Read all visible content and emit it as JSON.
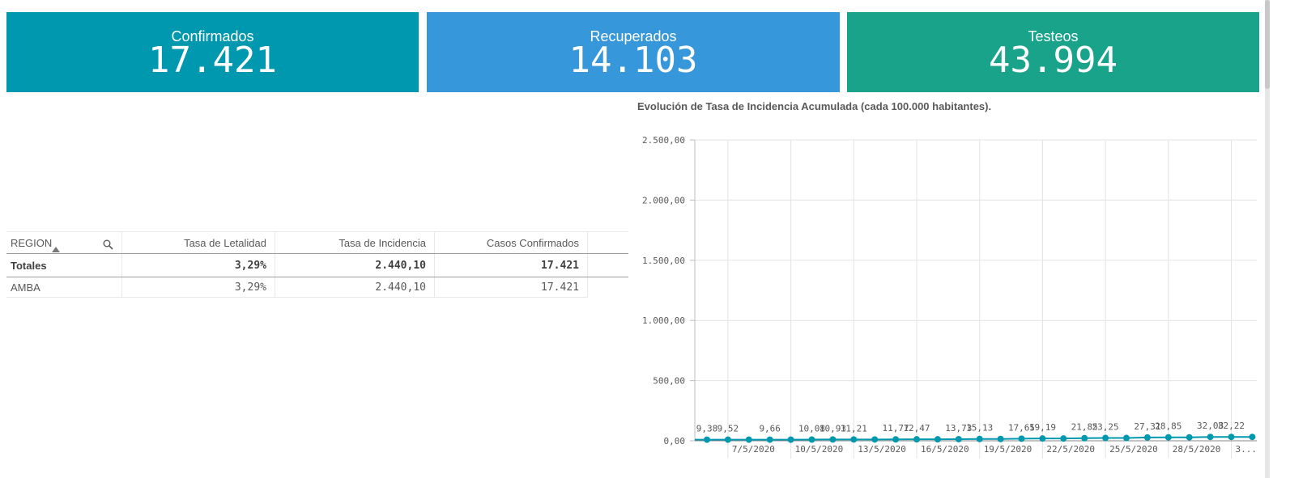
{
  "kpis": [
    {
      "label": "Confirmados",
      "value": "17.421",
      "color": "#0098ae"
    },
    {
      "label": "Recuperados",
      "value": "14.103",
      "color": "#3797db"
    },
    {
      "label": "Testeos",
      "value": "43.994",
      "color": "#18a38a"
    }
  ],
  "table": {
    "headers": [
      "REGION",
      "Tasa de Letalidad",
      "Tasa de Incidencia",
      "Casos Confirmados"
    ],
    "totals": [
      "Totales",
      "3,29%",
      "2.440,10",
      "17.421"
    ],
    "rows": [
      [
        "AMBA",
        "3,29%",
        "2.440,10",
        "17.421"
      ]
    ],
    "sort_icon": "sort-ascending-icon",
    "search_icon": "search-icon"
  },
  "chart_title": "Evolución de Tasa de Incidencia Acumulada (cada 100.000 habitantes).",
  "chart_data": {
    "type": "line",
    "title": "Evolución de Tasa de Incidencia Acumulada (cada 100.000 habitantes).",
    "ylim": [
      0,
      2500
    ],
    "yticks": [
      "0,00",
      "500,00",
      "1.000,00",
      "1.500,00",
      "2.000,00",
      "2.500,00"
    ],
    "ytick_values": [
      0,
      500,
      1000,
      1500,
      2000,
      2500
    ],
    "xtick_labels": [
      "7/5/2020",
      "10/5/2020",
      "13/5/2020",
      "16/5/2020",
      "19/5/2020",
      "22/5/2020",
      "25/5/2020",
      "28/5/2020",
      "3..."
    ],
    "xtick_index": [
      1,
      4,
      7,
      10,
      13,
      16,
      19,
      22,
      25
    ],
    "values": [
      9.38,
      9.52,
      9.52,
      9.66,
      9.66,
      10.08,
      10.93,
      11.21,
      11.21,
      11.77,
      12.47,
      12.47,
      13.73,
      15.13,
      15.13,
      17.65,
      19.19,
      19.19,
      21.85,
      23.25,
      23.25,
      27.31,
      28.85,
      28.85,
      32.08,
      32.22,
      32.22
    ],
    "labels": [
      "9,38",
      "9,52",
      "",
      "9,66",
      "",
      "10,08",
      "10,93",
      "11,21",
      "",
      "11,77",
      "12,47",
      "",
      "13,73",
      "15,13",
      "",
      "17,65",
      "19,19",
      "",
      "21,85",
      "23,25",
      "",
      "27,31",
      "28,85",
      "",
      "32,08",
      "32,22",
      ""
    ],
    "grid": true,
    "series_color": "#0098ae"
  }
}
